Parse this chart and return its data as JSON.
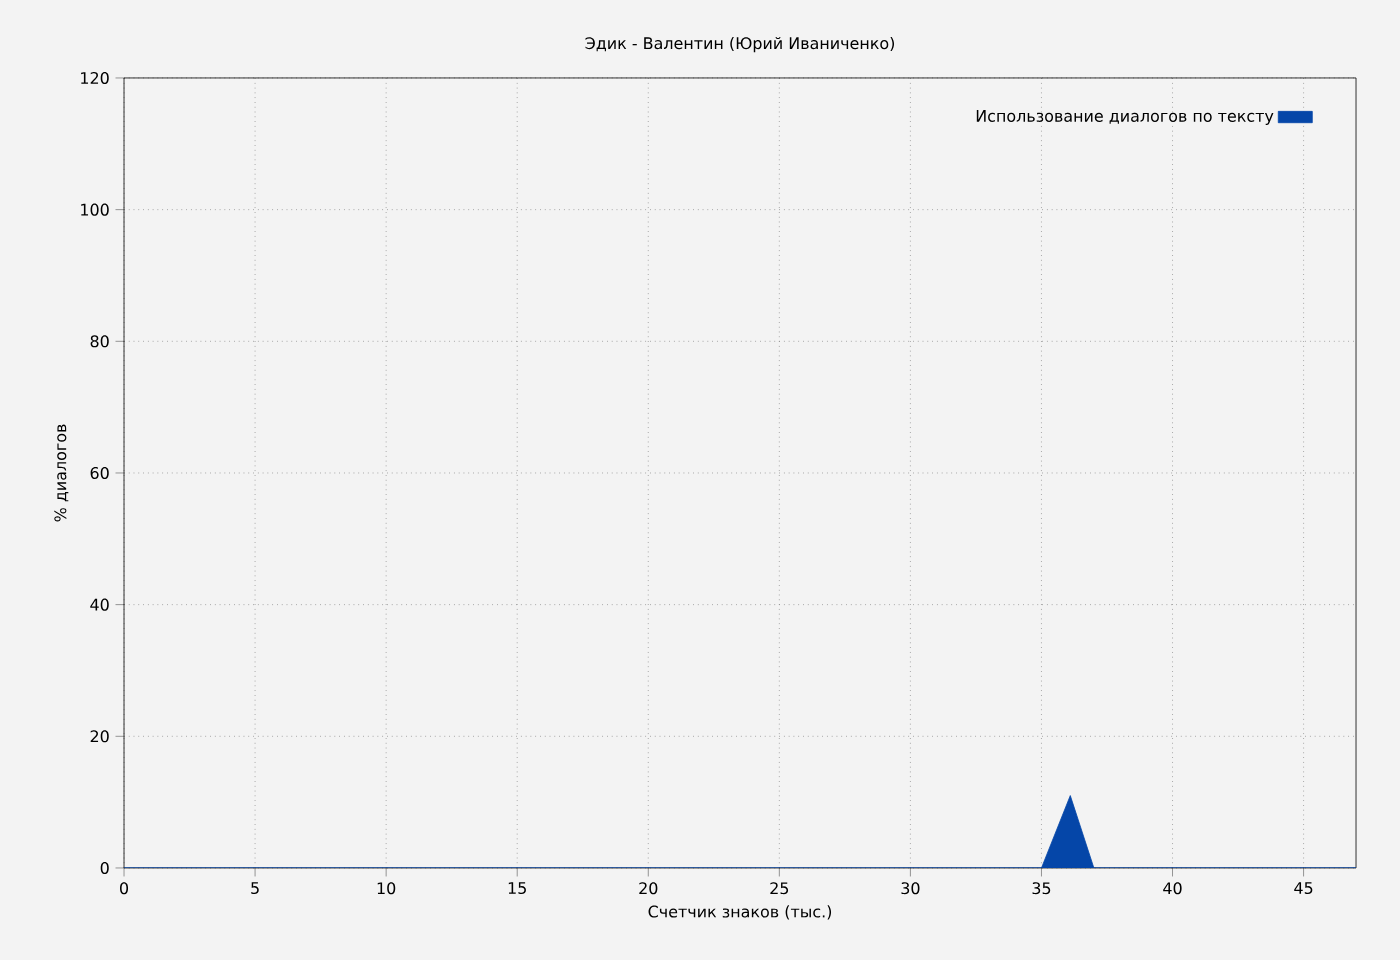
{
  "chart_data": {
    "type": "area",
    "title": "Эдик - Валентин (Юрий Иваниченко)",
    "xlabel": "Счетчик знаков (тыс.)",
    "ylabel": "% диалогов",
    "x": [
      0,
      35,
      36.1,
      37,
      47
    ],
    "series": [
      {
        "name": "Использование диалогов по тексту",
        "color": "#0546a8",
        "values": [
          0,
          0,
          11,
          0,
          0
        ]
      }
    ],
    "xlim": [
      0,
      47
    ],
    "ylim": [
      0,
      120
    ],
    "xticks": [
      0,
      5,
      10,
      15,
      20,
      25,
      30,
      35,
      40,
      45
    ],
    "yticks": [
      0,
      20,
      40,
      60,
      80,
      100,
      120
    ],
    "grid": true,
    "legend": "top right"
  }
}
